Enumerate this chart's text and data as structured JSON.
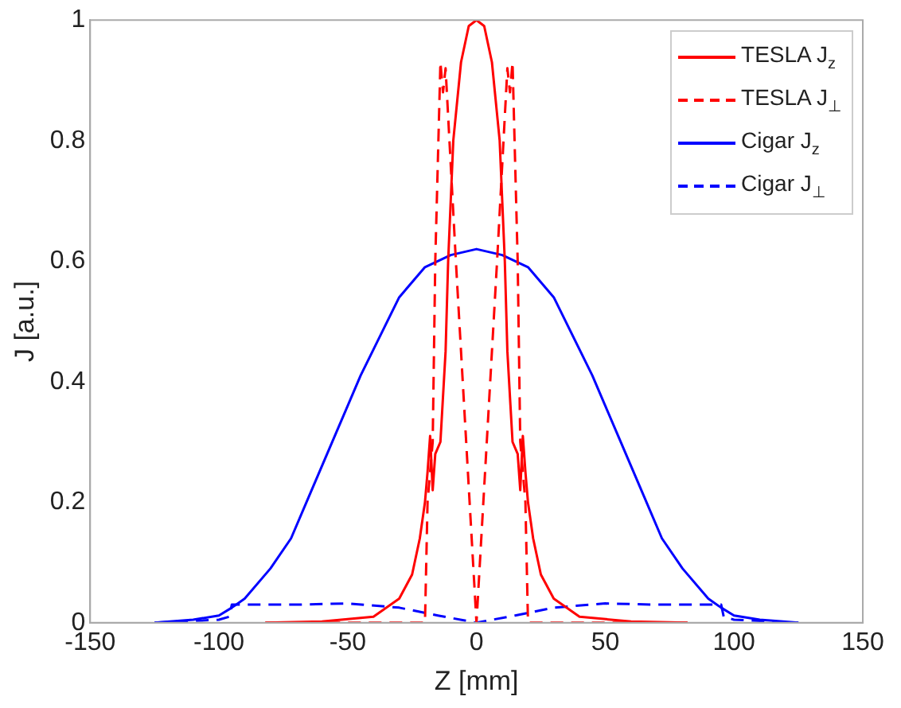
{
  "chart_data": {
    "type": "line",
    "xlabel": "Z [mm]",
    "ylabel": "J [a.u.]",
    "xlim": [
      -150,
      150
    ],
    "xticks": [
      -150,
      -100,
      -50,
      0,
      50,
      100,
      150
    ],
    "ylim": [
      0,
      1
    ],
    "yticks": [
      0,
      0.2,
      0.4,
      0.6,
      0.8,
      1
    ],
    "grid": false,
    "legend": "top right",
    "marker": "none",
    "series": [
      {
        "name": "TESLA J$_{z}$",
        "color": "#ff0000",
        "line_style": "solid",
        "x": [
          -82,
          -60,
          -40,
          -30,
          -25,
          -22,
          -20,
          -19,
          -18,
          -17,
          -16,
          -14,
          -12,
          -11,
          -9,
          -6,
          -3,
          0,
          3,
          6,
          9,
          11,
          12,
          14,
          16,
          17,
          18,
          19,
          20,
          22,
          25,
          30,
          40,
          60,
          82
        ],
        "values": [
          0,
          0.002,
          0.01,
          0.04,
          0.08,
          0.14,
          0.2,
          0.25,
          0.31,
          0.22,
          0.28,
          0.3,
          0.45,
          0.6,
          0.8,
          0.93,
          0.99,
          1,
          0.99,
          0.93,
          0.8,
          0.6,
          0.45,
          0.3,
          0.28,
          0.22,
          0.31,
          0.25,
          0.2,
          0.14,
          0.08,
          0.04,
          0.01,
          0.002,
          0
        ]
      },
      {
        "name": "TESLA J$_{⊥}$",
        "color": "#ff0000",
        "line_style": "dashed",
        "x": [
          -82,
          -20,
          -19,
          -17,
          -16,
          -14,
          -13,
          -12,
          -8,
          -4,
          0,
          4,
          8,
          12,
          13,
          14,
          16,
          17,
          19,
          20,
          82
        ],
        "values": [
          0,
          0,
          0.2,
          0.3,
          0.6,
          0.93,
          0.88,
          0.92,
          0.6,
          0.3,
          0,
          0.3,
          0.6,
          0.92,
          0.88,
          0.93,
          0.6,
          0.3,
          0.2,
          0,
          0
        ]
      },
      {
        "name": "Cigar J$_{z}$",
        "color": "#0000ff",
        "line_style": "solid",
        "x": [
          -125,
          -110,
          -100,
          -95,
          -90,
          -80,
          -72,
          -65,
          -55,
          -45,
          -30,
          -20,
          -10,
          0,
          10,
          20,
          30,
          45,
          55,
          65,
          72,
          80,
          90,
          95,
          100,
          110,
          125
        ],
        "values": [
          0,
          0.005,
          0.012,
          0.025,
          0.04,
          0.09,
          0.14,
          0.21,
          0.31,
          0.41,
          0.54,
          0.59,
          0.61,
          0.62,
          0.61,
          0.59,
          0.54,
          0.41,
          0.31,
          0.21,
          0.14,
          0.09,
          0.04,
          0.025,
          0.012,
          0.005,
          0
        ]
      },
      {
        "name": "Cigar J$_{⊥}$",
        "color": "#0000ff",
        "line_style": "dashed",
        "x": [
          -125,
          -100,
          -96,
          -95,
          -70,
          -50,
          -30,
          -15,
          0,
          15,
          30,
          50,
          70,
          95,
          96,
          100,
          125
        ],
        "values": [
          0,
          0.005,
          0.01,
          0.03,
          0.03,
          0.032,
          0.025,
          0.012,
          0,
          0.012,
          0.025,
          0.032,
          0.03,
          0.03,
          0.01,
          0.005,
          0
        ]
      }
    ]
  }
}
